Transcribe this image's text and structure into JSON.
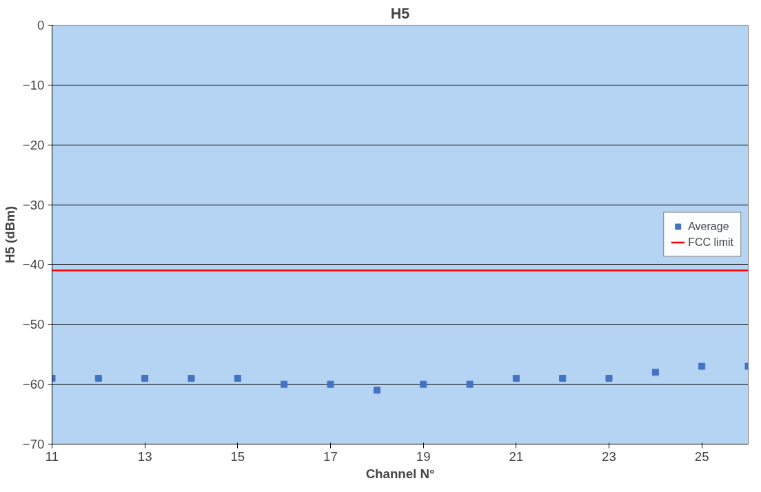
{
  "chart_data": {
    "type": "scatter",
    "title": "H5",
    "xlabel": "Channel N°",
    "ylabel": "H5 (dBm)",
    "xlim": [
      11,
      26
    ],
    "xticks": [
      11,
      13,
      15,
      17,
      19,
      21,
      23,
      25
    ],
    "ylim": [
      -70,
      0
    ],
    "yticks": [
      -70,
      -60,
      -50,
      -40,
      -30,
      -20,
      -10,
      0
    ],
    "grid": "y",
    "legend": "right",
    "x": [
      11,
      12,
      13,
      14,
      15,
      16,
      17,
      18,
      19,
      20,
      21,
      22,
      23,
      24,
      25,
      26
    ],
    "series": [
      {
        "name": "Average",
        "color": "#4472c4",
        "marker": "square",
        "values": [
          -59,
          -59,
          -59,
          -59,
          -59,
          -60,
          -60,
          -61,
          -60,
          -60,
          -59,
          -59,
          -59,
          -58,
          -57,
          -57
        ]
      },
      {
        "name": "FCC limit",
        "type": "line",
        "color": "#ff0000",
        "x": [
          11,
          26
        ],
        "values": [
          -41,
          -41
        ]
      }
    ]
  }
}
